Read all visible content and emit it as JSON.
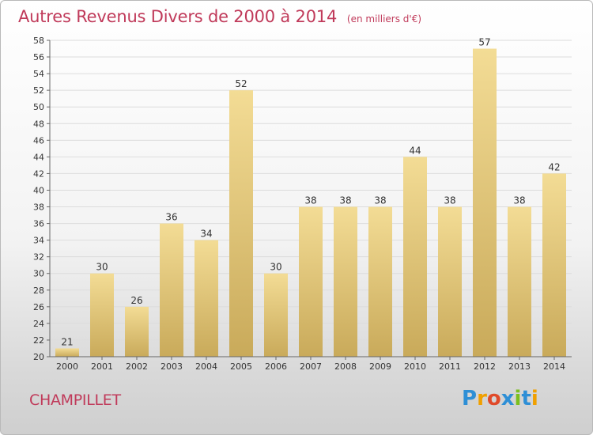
{
  "header": {
    "title": "Autres Revenus Divers de 2000 à 2014",
    "subtitle": "(en milliers d'€)"
  },
  "commune": "CHAMPILLET",
  "logo": {
    "text": "Proxiti",
    "letters": [
      {
        "ch": "P",
        "color": "#2e8fd6"
      },
      {
        "ch": "r",
        "color": "#f0a000"
      },
      {
        "ch": "o",
        "color": "#e04a2a"
      },
      {
        "ch": "x",
        "color": "#2e8fd6"
      },
      {
        "ch": "i",
        "color": "#7cbf1e"
      },
      {
        "ch": "t",
        "color": "#2e8fd6"
      },
      {
        "ch": "i",
        "color": "#f0a000"
      }
    ]
  },
  "colors": {
    "title": "#c03a5a",
    "bar_light": "#f3dc95",
    "bar_dark": "#c9aa5a",
    "grid": "#dcdcdc",
    "axis": "#666666"
  },
  "chart_data": {
    "type": "bar",
    "title": "Autres Revenus Divers de 2000 à 2014",
    "subtitle": "(en milliers d'€)",
    "categories": [
      "2000",
      "2001",
      "2002",
      "2003",
      "2004",
      "2005",
      "2006",
      "2007",
      "2008",
      "2009",
      "2010",
      "2011",
      "2012",
      "2013",
      "2014"
    ],
    "values": [
      21,
      30,
      26,
      36,
      34,
      52,
      30,
      38,
      38,
      38,
      44,
      38,
      57,
      38,
      42
    ],
    "ylim": [
      20,
      58
    ],
    "ytick_step": 2,
    "grid": true,
    "data_labels": true
  }
}
